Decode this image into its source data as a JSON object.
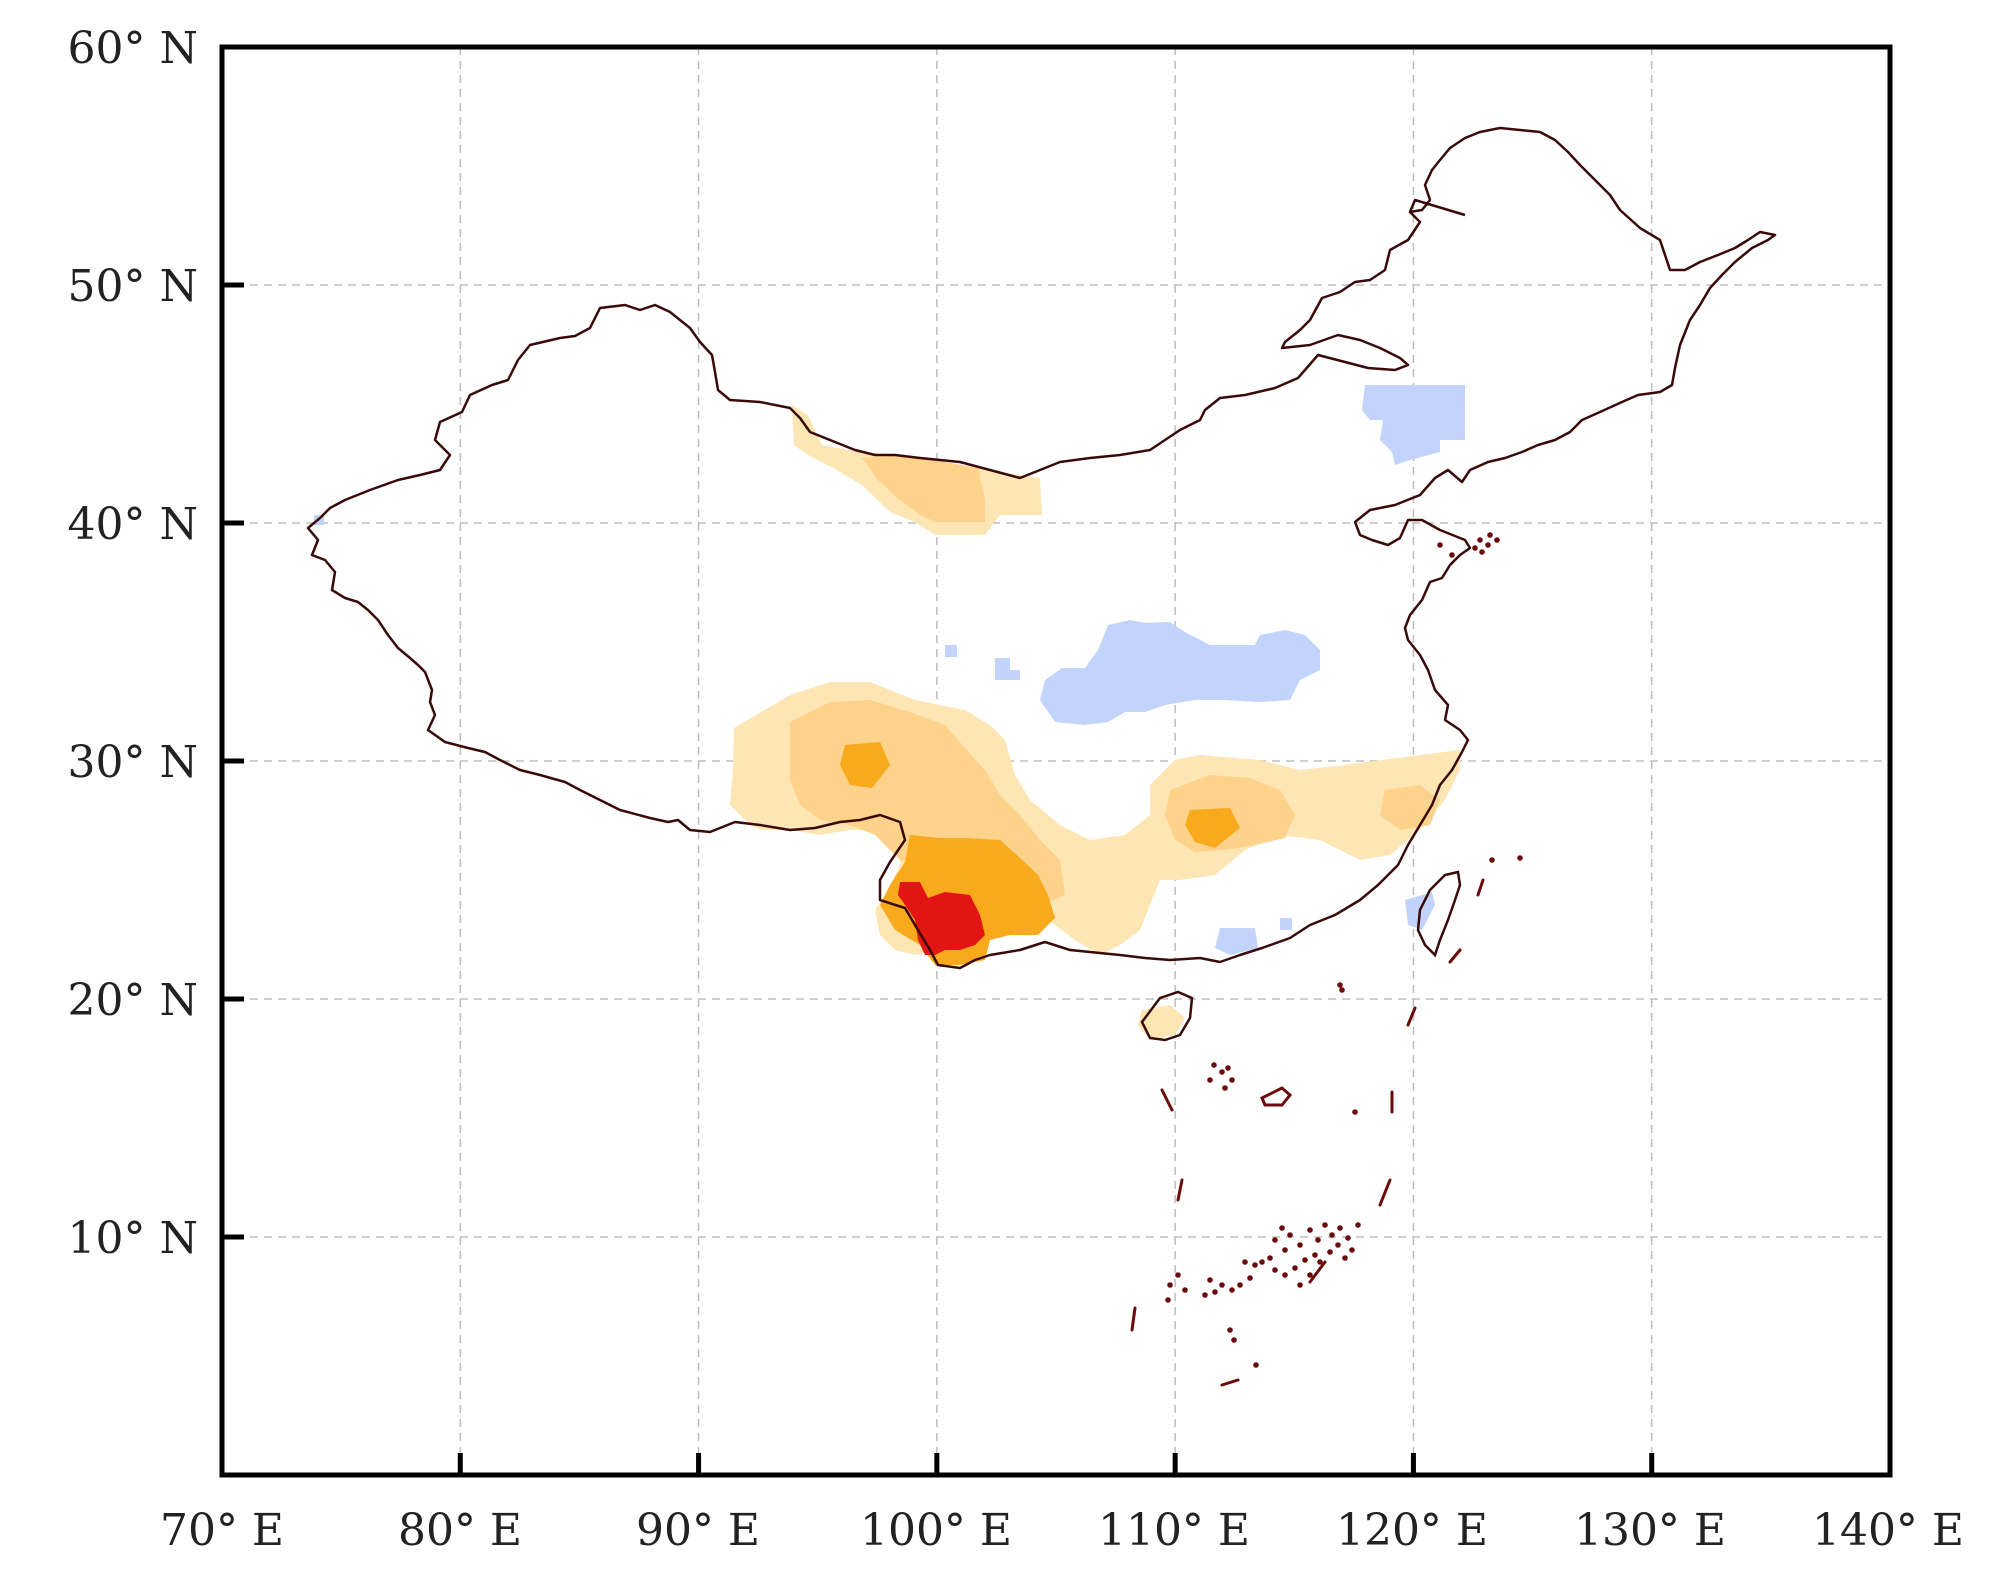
{
  "map": {
    "type": "gridded-anomaly-map",
    "region": "China and South China Sea",
    "extent": {
      "lon": [
        70,
        140
      ],
      "lat": [
        0,
        60
      ]
    },
    "gridlines": "dashed",
    "lon_ticks": [
      80,
      90,
      100,
      110,
      120,
      130
    ],
    "lat_ticks": [
      10,
      20,
      30,
      40,
      50
    ],
    "lon_labels": [
      "70° E",
      "80° E",
      "90° E",
      "100° E",
      "110° E",
      "120° E",
      "130° E",
      "140° E"
    ],
    "lat_labels": [
      "10° N",
      "20° N",
      "30° N",
      "40° N",
      "50° N",
      "60° N"
    ],
    "colors": {
      "border": "#3a0a0a",
      "pale_orange": "#fde6b3",
      "light_orange": "#fdd28a",
      "orange": "#f9aa1c",
      "red": "#e31414",
      "light_blue": "#c2d4fb"
    },
    "legend": "none"
  }
}
